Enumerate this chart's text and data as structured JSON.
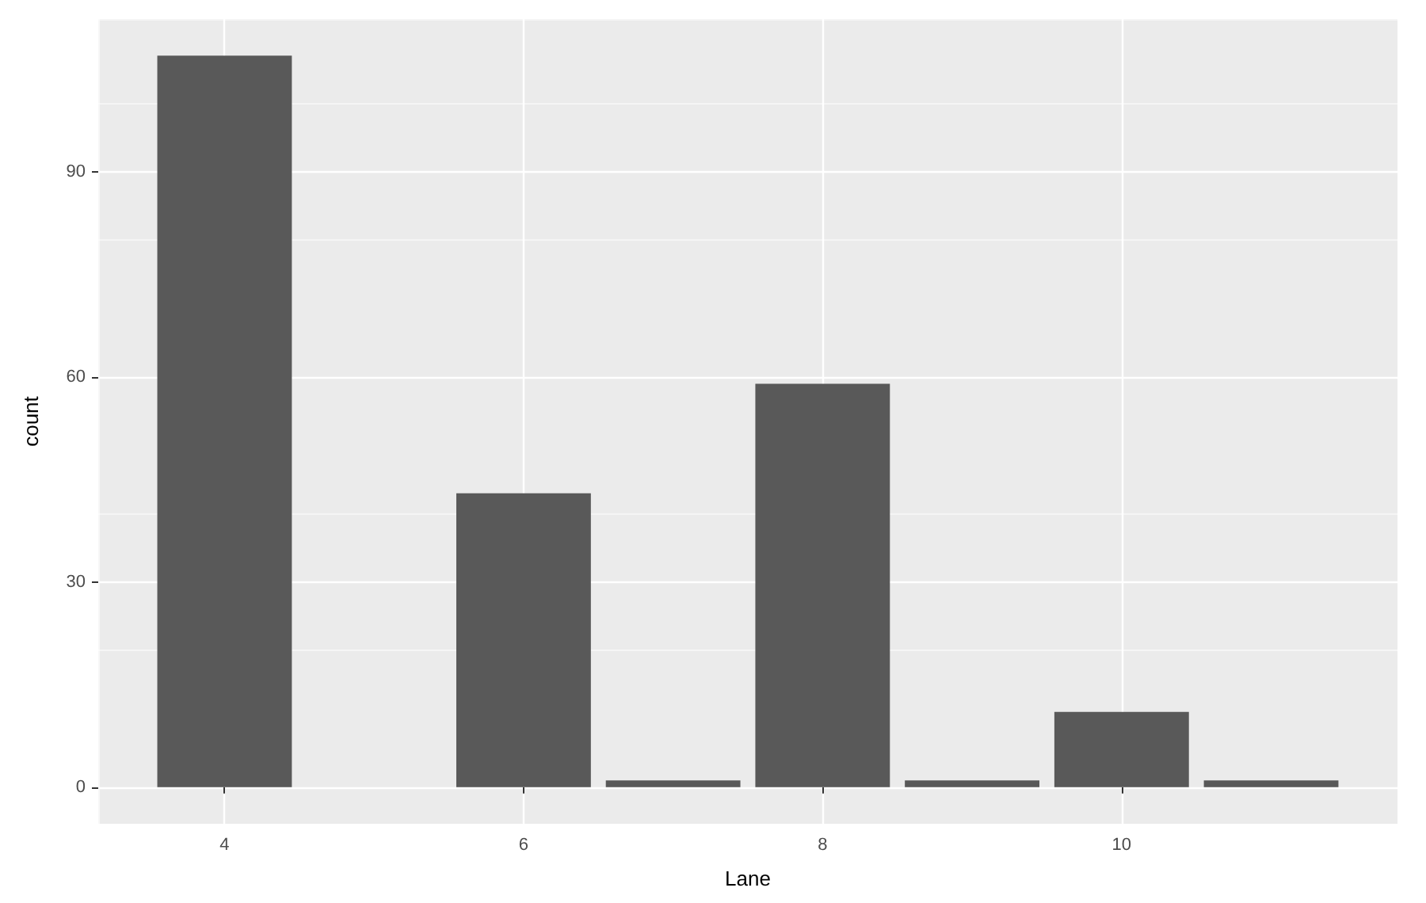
{
  "chart_data": {
    "type": "bar",
    "xlabel": "Lane",
    "ylabel": "count",
    "x": [
      4,
      6,
      7,
      8,
      9,
      10,
      11
    ],
    "values": [
      107,
      43,
      1,
      59,
      1,
      11,
      1
    ],
    "color": "#595959",
    "xlim": [
      3.155,
      11.845
    ],
    "xticks": [
      4,
      6,
      8,
      10
    ],
    "ylim": [
      -5.35,
      112.35
    ],
    "yticks": [
      0,
      30,
      60,
      90
    ],
    "grid": true
  }
}
